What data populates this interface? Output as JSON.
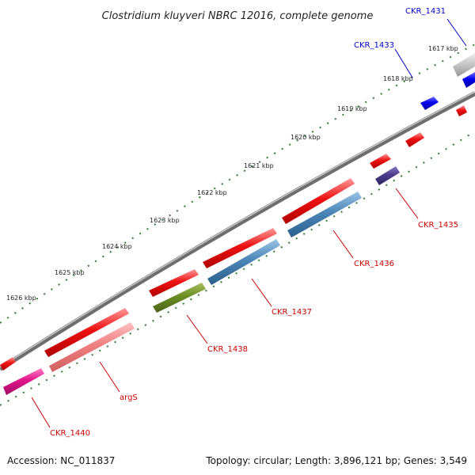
{
  "title": "Clostridium kluyveri NBRC 12016, complete genome",
  "footer": {
    "accession": "Accession: NC_011837",
    "topology": "Topology: circular; Length: 3,896,121 bp; Genes: 3,549"
  },
  "ticks": [
    {
      "label": "1617 kbp",
      "value": 1617
    },
    {
      "label": "1618 kbp",
      "value": 1618
    },
    {
      "label": "1619 kbp",
      "value": 1619
    },
    {
      "label": "1620 kbp",
      "value": 1620
    },
    {
      "label": "1621 kbp",
      "value": 1621
    },
    {
      "label": "1622 kbp",
      "value": 1622
    },
    {
      "label": "1623 kbp",
      "value": 1623
    },
    {
      "label": "1624 kbp",
      "value": 1624
    },
    {
      "label": "1625 kbp",
      "value": 1625
    },
    {
      "label": "1626 kbp",
      "value": 1626
    }
  ],
  "gene_labels": [
    {
      "name": "CKR_1431",
      "color": "#0000cc"
    },
    {
      "name": "CKR_1433",
      "color": "#0000cc"
    },
    {
      "name": "CKR_1435",
      "color": "#cc0000"
    },
    {
      "name": "CKR_1436",
      "color": "#cc0000"
    },
    {
      "name": "CKR_1437",
      "color": "#cc0000"
    },
    {
      "name": "CKR_1438",
      "color": "#cc0000"
    },
    {
      "name": "argS",
      "color": "#cc0000"
    },
    {
      "name": "CKR_1440",
      "color": "#cc0000"
    }
  ],
  "colors": {
    "backbone": "#8a8a8a",
    "tick_dots": "#2e7d32",
    "cds_red": "#ee1111",
    "cds_blue": "#0000ee",
    "cds_steelblue": "#4a86b8",
    "cds_olive": "#6b8e23",
    "cds_purple": "#4b3c8c",
    "cds_salmon": "#f08080",
    "cds_magenta": "#e0148c",
    "cds_gray": "#c8c8c8"
  }
}
